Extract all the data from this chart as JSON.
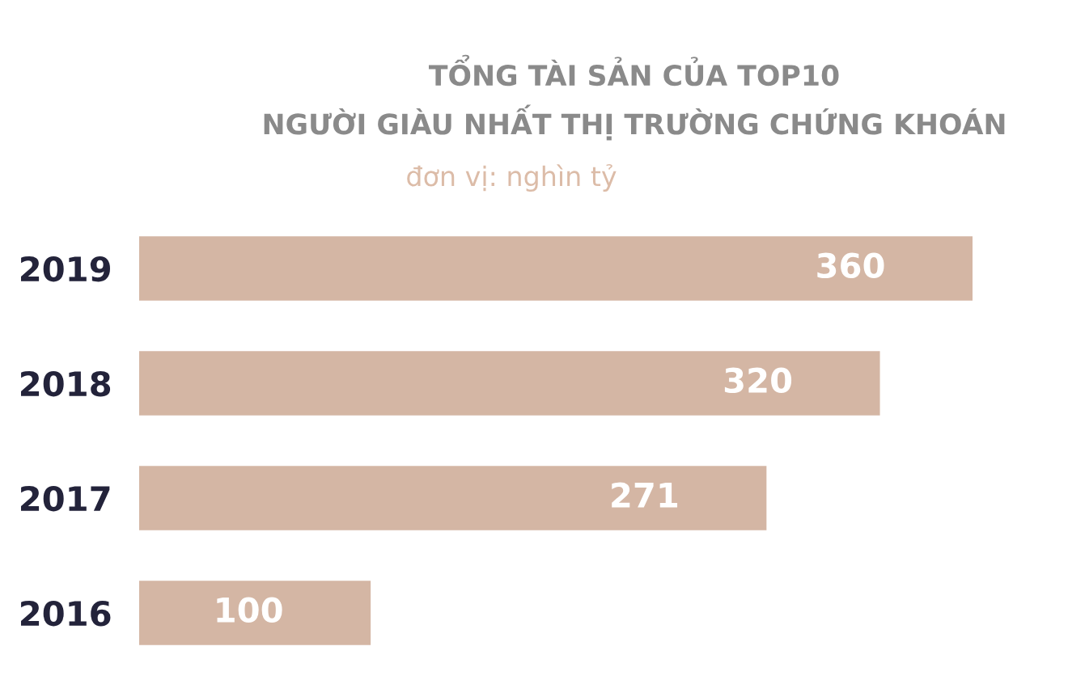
{
  "chart_data": {
    "type": "bar",
    "orientation": "horizontal",
    "title": "TỔNG TÀI SẢN CỦA TOP10\nNGƯỜI GIÀU NHẤT THỊ TRƯỜNG CHỨNG KHOÁN",
    "subtitle": "đơn vị: nghìn tỷ",
    "categories": [
      "2019",
      "2018",
      "2017",
      "2016"
    ],
    "values": [
      360,
      320,
      271,
      100
    ],
    "color": "#d4b6a4",
    "data_labels": true,
    "grid": false,
    "legend": false
  }
}
